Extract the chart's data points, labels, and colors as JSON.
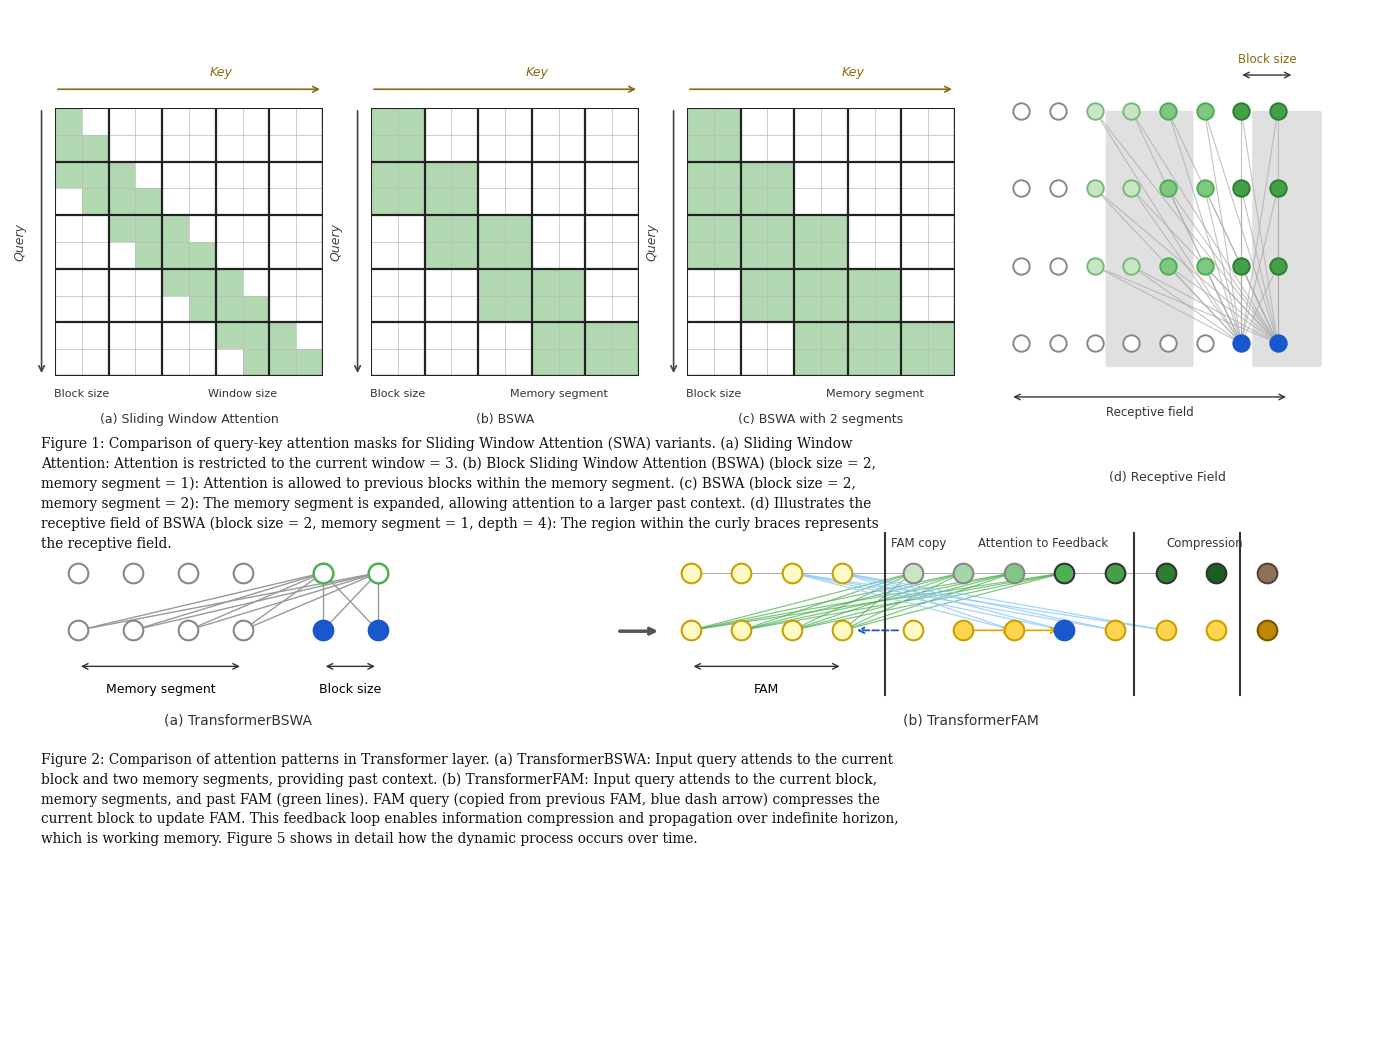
{
  "bg_color": "#ffffff",
  "green_fill": "#b2d8b2",
  "title_color": "#8B6914",
  "fig1_caption_bold": "Figure 1:",
  "fig1_caption": "Figure 1: Comparison of query-key attention masks for Sliding Window Attention (SWA) variants. (a) Sliding Window\nAttention: Attention is restricted to the current window = 3. (b) Block Sliding Window Attention (BSWA) (block size = 2,\nmemory segment = 1): Attention is allowed to previous blocks within the memory segment. (c) BSWA (block size = 2,\nmemory segment = 2): The memory segment is expanded, allowing attention to a larger past context. (d) Illustrates the\nreceptive field of BSWA (block size = 2, memory segment = 1, depth = 4): The region within the curly braces represents\nthe receptive field.",
  "fig2_caption": "Figure 2: Comparison of attention patterns in Transformer layer. (a) TransformerBSWA: Input query attends to the current\nblock and two memory segments, providing past context. (b) TransformerFAM: Input query attends to the current block,\nmemory segments, and past FAM (green lines). FAM query (copied from previous FAM, blue dash arrow) compresses the\ncurrent block to update FAM. This feedback loop enables information compression and propagation over indefinite horizon,\nwhich is working memory. Figure 5 shows in detail how the dynamic process occurs over time."
}
